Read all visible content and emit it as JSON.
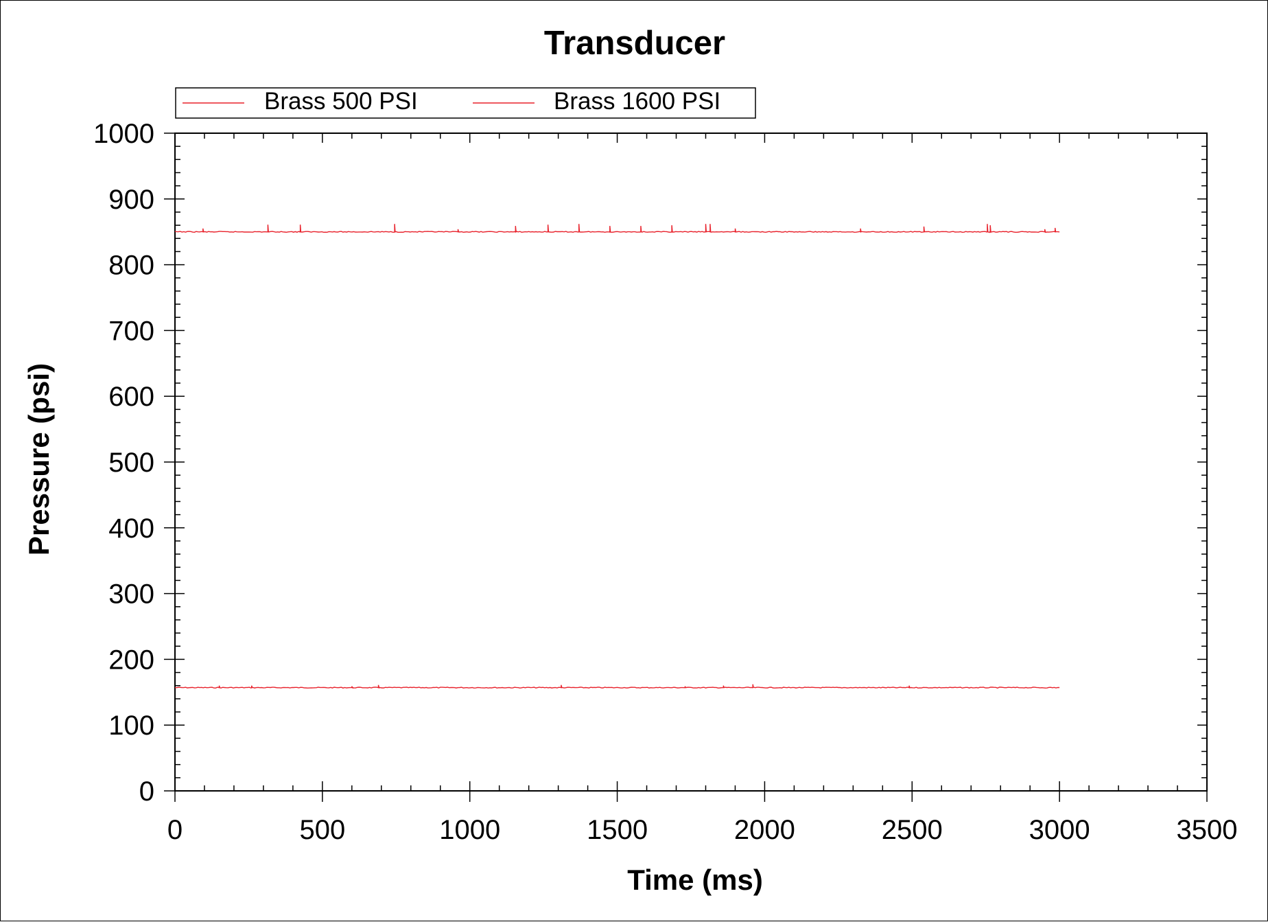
{
  "chart_data": {
    "type": "line",
    "title": "Transducer",
    "xlabel": "Time (ms)",
    "ylabel": "Pressure (psi)",
    "xlim": [
      0,
      3500
    ],
    "ylim": [
      0,
      1000
    ],
    "x_ticks": [
      0,
      500,
      1000,
      1500,
      2000,
      2500,
      3000,
      3500
    ],
    "x_tick_labels": [
      "0",
      "500",
      "1000",
      "1500",
      "2000",
      "2500",
      "3000",
      "3500"
    ],
    "y_ticks": [
      0,
      100,
      200,
      300,
      400,
      500,
      600,
      700,
      800,
      900,
      1000
    ],
    "y_tick_labels": [
      "0",
      "100",
      "200",
      "300",
      "400",
      "500",
      "600",
      "700",
      "800",
      "900",
      "1000"
    ],
    "grid": false,
    "legend_position": "top",
    "series": [
      {
        "name": "Brass 500 PSI",
        "color": "#e8202a",
        "x_start": 0,
        "x_end": 3000,
        "baseline": 157,
        "spikes": [
          {
            "x": 150,
            "y": 160
          },
          {
            "x": 260,
            "y": 160
          },
          {
            "x": 600,
            "y": 159
          },
          {
            "x": 690,
            "y": 161
          },
          {
            "x": 1310,
            "y": 161
          },
          {
            "x": 1730,
            "y": 159
          },
          {
            "x": 1860,
            "y": 160
          },
          {
            "x": 1960,
            "y": 162
          },
          {
            "x": 2490,
            "y": 160
          }
        ]
      },
      {
        "name": "Brass 1600 PSI",
        "color": "#e8202a",
        "x_start": 0,
        "x_end": 3000,
        "baseline": 850,
        "spikes": [
          {
            "x": 95,
            "y": 855
          },
          {
            "x": 315,
            "y": 861
          },
          {
            "x": 425,
            "y": 861
          },
          {
            "x": 745,
            "y": 862
          },
          {
            "x": 960,
            "y": 854
          },
          {
            "x": 1155,
            "y": 859
          },
          {
            "x": 1265,
            "y": 861
          },
          {
            "x": 1370,
            "y": 862
          },
          {
            "x": 1475,
            "y": 859
          },
          {
            "x": 1580,
            "y": 859
          },
          {
            "x": 1685,
            "y": 860
          },
          {
            "x": 1800,
            "y": 862
          },
          {
            "x": 1815,
            "y": 862
          },
          {
            "x": 1900,
            "y": 855
          },
          {
            "x": 2325,
            "y": 855
          },
          {
            "x": 2540,
            "y": 858
          },
          {
            "x": 2755,
            "y": 862
          },
          {
            "x": 2765,
            "y": 860
          },
          {
            "x": 2950,
            "y": 854
          },
          {
            "x": 2985,
            "y": 856
          }
        ]
      }
    ]
  }
}
